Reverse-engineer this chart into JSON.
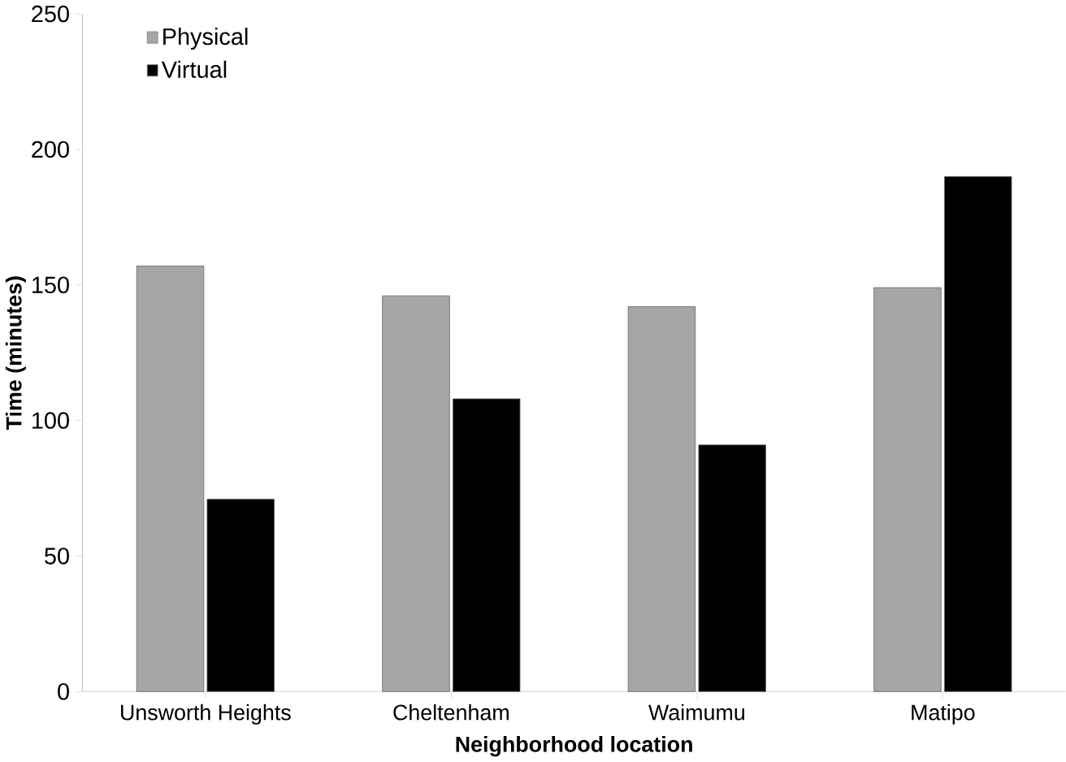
{
  "chart_data": {
    "type": "bar",
    "xlabel": "Neighborhood location",
    "ylabel": "Time (minutes)",
    "categories": [
      "Unsworth Heights",
      "Cheltenham",
      "Waimumu",
      "Matipo"
    ],
    "series": [
      {
        "name": "Physical",
        "color": "#a6a6a6",
        "values": [
          157,
          146,
          142,
          149
        ]
      },
      {
        "name": "Virtual",
        "color": "#000000",
        "values": [
          71,
          108,
          91,
          190
        ]
      }
    ],
    "ylim": [
      0,
      250
    ],
    "yticks": [
      0,
      50,
      100,
      150,
      200,
      250
    ],
    "grid": false,
    "legend": "top left"
  }
}
